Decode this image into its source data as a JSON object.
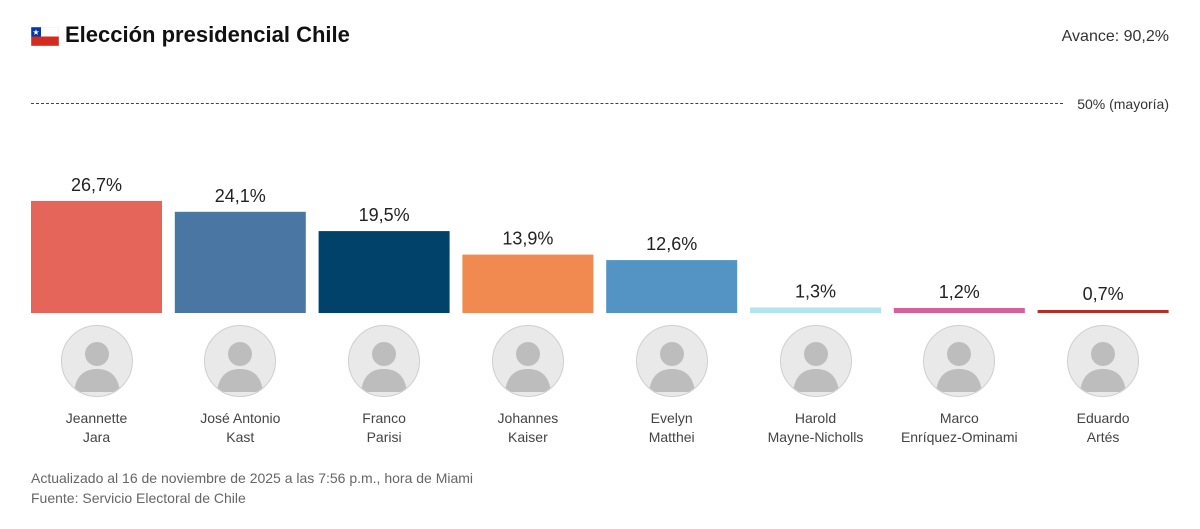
{
  "header": {
    "title": "Elección presidencial Chile",
    "progress": "Avance: 90,2%"
  },
  "flag": {
    "icon": "chile-flag-icon",
    "colors": {
      "red": "#d52b1e",
      "white": "#ffffff",
      "blue": "#0039a6"
    }
  },
  "chart_data": {
    "type": "bar",
    "title": "Elección presidencial Chile",
    "categories": [
      "Jeannette Jara",
      "José Antonio Kast",
      "Franco Parisi",
      "Johannes Kaiser",
      "Evelyn Matthei",
      "Harold Mayne-Nicholls",
      "Marco Enríquez-Ominami",
      "Eduardo Artés"
    ],
    "values": [
      26.7,
      24.1,
      19.5,
      13.9,
      12.6,
      1.3,
      1.2,
      0.7
    ],
    "value_labels": [
      "26,7%",
      "24,1%",
      "19,5%",
      "13,9%",
      "12,6%",
      "1,3%",
      "1,2%",
      "0,7%"
    ],
    "colors": [
      "#e5655b",
      "#4a76a3",
      "#01426a",
      "#f08a50",
      "#5394c5",
      "#b3e2f0",
      "#d6619a",
      "#b62d28"
    ],
    "reference_line": {
      "value": 50,
      "label": "50% (mayoría)"
    },
    "ylim": [
      0,
      50
    ],
    "grid": false,
    "legend": "none"
  },
  "candidates": [
    {
      "first": "Jeannette",
      "last": "Jara"
    },
    {
      "first": "José Antonio",
      "last": "Kast"
    },
    {
      "first": "Franco",
      "last": "Parisi"
    },
    {
      "first": "Johannes",
      "last": "Kaiser"
    },
    {
      "first": "Evelyn",
      "last": "Matthei"
    },
    {
      "first": "Harold",
      "last": "Mayne-Nicholls"
    },
    {
      "first": "Marco",
      "last": "Enríquez-Ominami"
    },
    {
      "first": "Eduardo",
      "last": "Artés"
    }
  ],
  "footer": {
    "updated": "Actualizado al 16 de noviembre de 2025 a las 7:56 p.m., hora de Miami",
    "source": "Fuente: Servicio Electoral de Chile"
  }
}
